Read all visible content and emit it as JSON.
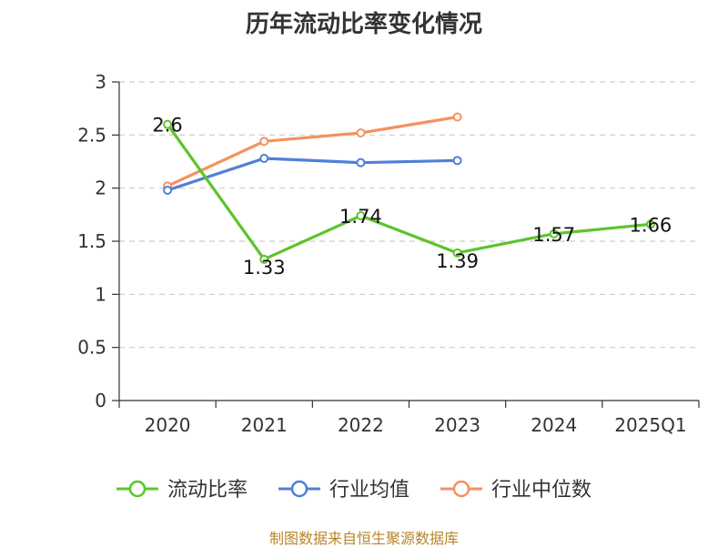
{
  "chart_data": {
    "type": "line",
    "title": "历年流动比率变化情况",
    "categories": [
      "2020",
      "2021",
      "2022",
      "2023",
      "2024",
      "2025Q1"
    ],
    "ylim": [
      0,
      3
    ],
    "yticks": [
      "0",
      "0.5",
      "1",
      "1.5",
      "2",
      "2.5",
      "3"
    ],
    "grid": true,
    "legend_position": "bottom",
    "series": [
      {
        "name": "流动比率",
        "color": "#5cc42b",
        "values": [
          2.6,
          1.33,
          1.74,
          1.39,
          1.57,
          1.66
        ],
        "labels": [
          "2.6",
          "1.33",
          "1.74",
          "1.39",
          "1.57",
          "1.66"
        ]
      },
      {
        "name": "行业均值",
        "color": "#4f7fd9",
        "values": [
          1.98,
          2.28,
          2.24,
          2.26,
          null,
          null
        ]
      },
      {
        "name": "行业中位数",
        "color": "#f3925e",
        "values": [
          2.02,
          2.44,
          2.52,
          2.67,
          null,
          null
        ]
      }
    ]
  },
  "source": "制图数据来自恒生聚源数据库"
}
